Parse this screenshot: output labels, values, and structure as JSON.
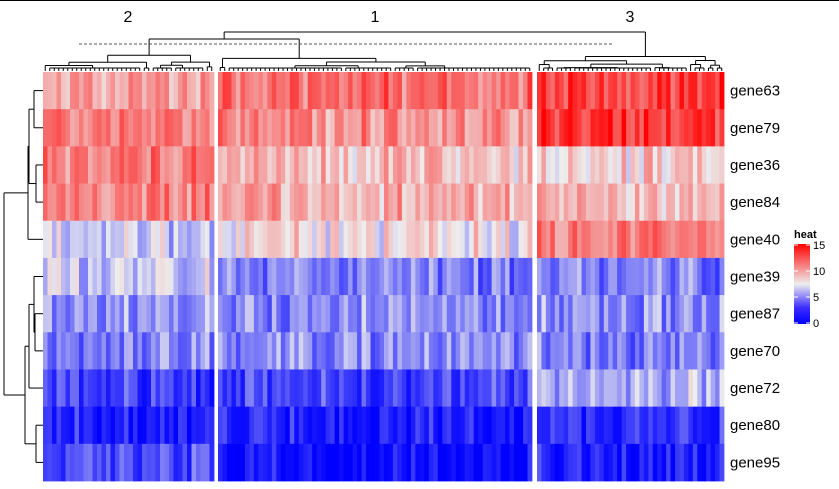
{
  "chart_data": {
    "type": "heatmap",
    "legend": {
      "title": "heat",
      "ticks": [
        0,
        5,
        10,
        15
      ],
      "range": [
        0,
        15
      ],
      "placement": "right"
    },
    "colors": {
      "low": "#0000FF",
      "mid": "#EEEEEE",
      "high": "#FF0000"
    },
    "column_clusters": [
      {
        "label": "2",
        "n_columns": 38
      },
      {
        "label": "1",
        "n_columns": 70
      },
      {
        "label": "3",
        "n_columns": 42
      }
    ],
    "rows": [
      "gene63",
      "gene79",
      "gene36",
      "gene84",
      "gene40",
      "gene39",
      "gene87",
      "gene70",
      "gene72",
      "gene80",
      "gene95"
    ],
    "approx_cluster_means": [
      [
        10,
        11.5,
        13
      ],
      [
        11,
        10.5,
        13.5
      ],
      [
        11,
        9,
        8.5
      ],
      [
        11,
        9.5,
        9
      ],
      [
        6.5,
        8,
        11
      ],
      [
        6.5,
        4.5,
        4.5
      ],
      [
        5,
        5,
        5
      ],
      [
        4.5,
        5,
        4.5
      ],
      [
        2.5,
        3,
        6
      ],
      [
        1.5,
        1.5,
        2
      ],
      [
        3,
        0.8,
        1.5
      ]
    ],
    "row_dendrogram": true,
    "column_dendrogram": true
  }
}
